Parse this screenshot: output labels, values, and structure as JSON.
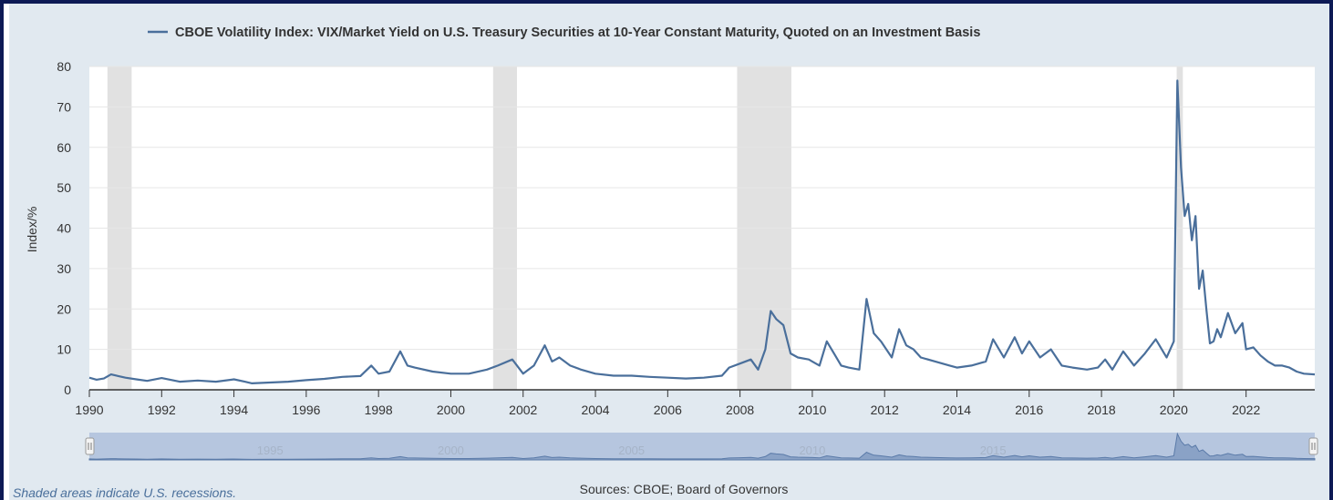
{
  "colors": {
    "series": "#4a6f9b",
    "recession": "#e1e1e1",
    "grid": "#e6e6e6",
    "background": "#e1e9f0",
    "navigator_fill": "#b6c6df"
  },
  "legend": {
    "label": "CBOE Volatility Index: VIX/Market Yield on U.S. Treasury Securities at 10-Year Constant Maturity, Quoted on an Investment Basis"
  },
  "footer": {
    "note": "Shaded areas indicate U.S. recessions.",
    "sources": "Sources: CBOE; Board of Governors"
  },
  "navigator": {
    "ticks": [
      "1995",
      "2000",
      "2005",
      "2010",
      "2015"
    ]
  },
  "chart_data": {
    "type": "line",
    "ylabel": "Index/%",
    "xlabel": "",
    "ylim": [
      0,
      80
    ],
    "xlim": [
      1990,
      2023.9
    ],
    "yticks": [
      0,
      10,
      20,
      30,
      40,
      50,
      60,
      70,
      80
    ],
    "xticks": [
      1990,
      1992,
      1994,
      1996,
      1998,
      2000,
      2002,
      2004,
      2006,
      2008,
      2010,
      2012,
      2014,
      2016,
      2018,
      2020,
      2022
    ],
    "recessions": [
      [
        1990.5,
        1991.17
      ],
      [
        2001.17,
        2001.83
      ],
      [
        2007.92,
        2009.42
      ],
      [
        2020.08,
        2020.25
      ]
    ],
    "grid": true,
    "legend_position": "top",
    "series": [
      {
        "name": "CBOE Volatility Index: VIX/Market Yield on U.S. Treasury Securities at 10-Year Constant Maturity, Quoted on an Investment Basis",
        "x": [
          1990.0,
          1990.2,
          1990.4,
          1990.6,
          1990.8,
          1991.0,
          1991.3,
          1991.6,
          1992.0,
          1992.5,
          1993.0,
          1993.5,
          1994.0,
          1994.3,
          1994.5,
          1995.0,
          1995.5,
          1996.0,
          1996.5,
          1997.0,
          1997.5,
          1997.8,
          1998.0,
          1998.3,
          1998.6,
          1998.8,
          1999.0,
          1999.5,
          2000.0,
          2000.5,
          2001.0,
          2001.3,
          2001.7,
          2002.0,
          2002.3,
          2002.6,
          2002.8,
          2003.0,
          2003.3,
          2003.6,
          2004.0,
          2004.5,
          2005.0,
          2005.5,
          2006.0,
          2006.5,
          2007.0,
          2007.5,
          2007.7,
          2008.0,
          2008.3,
          2008.5,
          2008.7,
          2008.85,
          2009.0,
          2009.2,
          2009.4,
          2009.6,
          2009.9,
          2010.2,
          2010.4,
          2010.6,
          2010.8,
          2011.0,
          2011.3,
          2011.5,
          2011.7,
          2011.9,
          2012.2,
          2012.4,
          2012.6,
          2012.8,
          2013.0,
          2013.4,
          2013.8,
          2014.0,
          2014.4,
          2014.8,
          2015.0,
          2015.3,
          2015.6,
          2015.8,
          2016.0,
          2016.3,
          2016.6,
          2016.9,
          2017.2,
          2017.6,
          2017.9,
          2018.1,
          2018.3,
          2018.6,
          2018.9,
          2019.2,
          2019.5,
          2019.8,
          2020.0,
          2020.1,
          2020.2,
          2020.3,
          2020.4,
          2020.5,
          2020.6,
          2020.7,
          2020.8,
          2020.9,
          2021.0,
          2021.1,
          2021.2,
          2021.3,
          2021.5,
          2021.7,
          2021.9,
          2022.0,
          2022.2,
          2022.4,
          2022.6,
          2022.8,
          2023.0,
          2023.2,
          2023.4,
          2023.6,
          2023.9
        ],
        "y": [
          3.0,
          2.5,
          2.8,
          3.8,
          3.4,
          3.0,
          2.6,
          2.2,
          2.9,
          2.0,
          2.3,
          2.0,
          2.6,
          2.0,
          1.6,
          1.8,
          2.0,
          2.4,
          2.7,
          3.2,
          3.4,
          6.0,
          4.0,
          4.5,
          9.5,
          6.0,
          5.5,
          4.5,
          4.0,
          4.0,
          5.0,
          6.0,
          7.5,
          4.0,
          6.0,
          11.0,
          7.0,
          8.0,
          6.0,
          5.0,
          4.0,
          3.5,
          3.5,
          3.2,
          3.0,
          2.8,
          3.0,
          3.5,
          5.5,
          6.5,
          7.5,
          5.0,
          10.0,
          19.5,
          17.5,
          16.0,
          9.0,
          8.0,
          7.5,
          6.0,
          12.0,
          9.0,
          6.0,
          5.5,
          5.0,
          22.5,
          14.0,
          12.0,
          8.0,
          15.0,
          11.0,
          10.0,
          8.0,
          7.0,
          6.0,
          5.5,
          6.0,
          7.0,
          12.5,
          8.0,
          13.0,
          9.0,
          12.0,
          8.0,
          10.0,
          6.0,
          5.5,
          5.0,
          5.5,
          7.5,
          5.0,
          9.5,
          6.0,
          9.0,
          12.5,
          8.0,
          12.0,
          76.5,
          55.0,
          43.0,
          46.0,
          37.0,
          43.0,
          25.0,
          29.5,
          20.0,
          11.5,
          12.0,
          15.0,
          13.0,
          19.0,
          14.0,
          16.5,
          10.0,
          10.5,
          8.5,
          7.0,
          6.0,
          6.0,
          5.5,
          4.5,
          4.0,
          3.8
        ]
      }
    ]
  }
}
